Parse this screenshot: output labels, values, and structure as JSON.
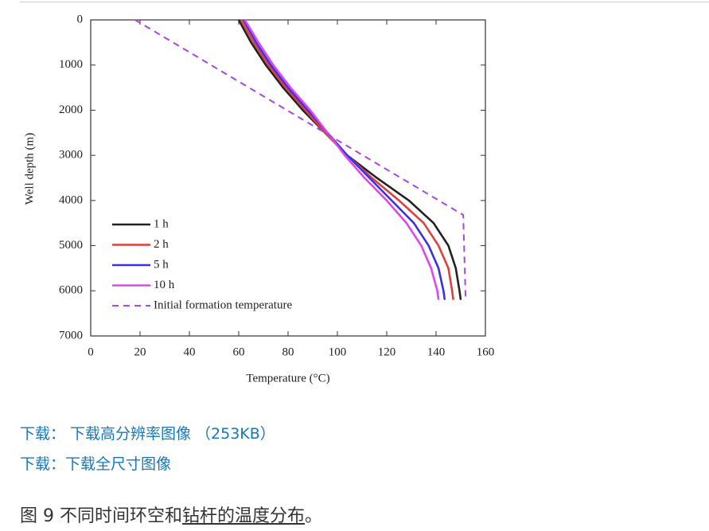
{
  "chart_data": {
    "type": "line",
    "xlabel": "Temperature (°C)",
    "ylabel": "Well depth (m)",
    "xlim": [
      0,
      160
    ],
    "xticks": [
      0,
      20,
      40,
      60,
      80,
      100,
      120,
      140,
      160
    ],
    "ylim": [
      7000,
      0
    ],
    "yticks": [
      0,
      1000,
      2000,
      3000,
      4000,
      5000,
      6000,
      7000
    ],
    "legend": "lower left",
    "series": [
      {
        "name": "1 h",
        "color": "#222222",
        "dash": false,
        "x": [
          60,
          65,
          71,
          78,
          86,
          95,
          104,
          116,
          129,
          139,
          145,
          148,
          149.5,
          150
        ],
        "values": [
          0,
          500,
          1000,
          1500,
          2000,
          2500,
          3000,
          3500,
          4000,
          4500,
          5000,
          5500,
          6000,
          6200
        ]
      },
      {
        "name": "2 h",
        "color": "#e0403a",
        "dash": false,
        "x": [
          61,
          66,
          72,
          79,
          87,
          95,
          104,
          114,
          125,
          135,
          141,
          145,
          146.5,
          147
        ],
        "values": [
          0,
          500,
          1000,
          1500,
          2000,
          2500,
          3000,
          3500,
          4000,
          4500,
          5000,
          5500,
          6000,
          6200
        ]
      },
      {
        "name": "5 h",
        "color": "#3a32e0",
        "dash": false,
        "x": [
          62,
          67,
          73,
          80,
          88,
          96,
          104,
          113,
          122,
          131,
          137,
          141,
          143,
          143.5
        ],
        "values": [
          0,
          500,
          1000,
          1500,
          2000,
          2500,
          3000,
          3500,
          4000,
          4500,
          5000,
          5500,
          6000,
          6200
        ]
      },
      {
        "name": "10 h",
        "color": "#e046f0",
        "dash": false,
        "x": [
          62.5,
          68,
          74,
          81,
          89,
          96,
          103,
          111,
          120,
          128,
          134,
          138,
          140.5,
          141
        ],
        "values": [
          0,
          500,
          1000,
          1500,
          2000,
          2500,
          3000,
          3500,
          4000,
          4500,
          5000,
          5500,
          6000,
          6200
        ]
      },
      {
        "name": "Initial formation temperature",
        "color": "#a347e6",
        "dash": true,
        "x": [
          18,
          151,
          152
        ],
        "values": [
          0,
          4320,
          6200
        ]
      }
    ]
  },
  "links": [
    {
      "prefix": "下载：",
      "text": "下载高分辨率图像",
      "size": "（253KB）"
    },
    {
      "prefix": "下载：",
      "text": "下载全尺寸图像"
    }
  ],
  "caption": {
    "lead": "图 9 不同时间环空和",
    "underlined": "钻杆的温度分布",
    "end": "。"
  }
}
